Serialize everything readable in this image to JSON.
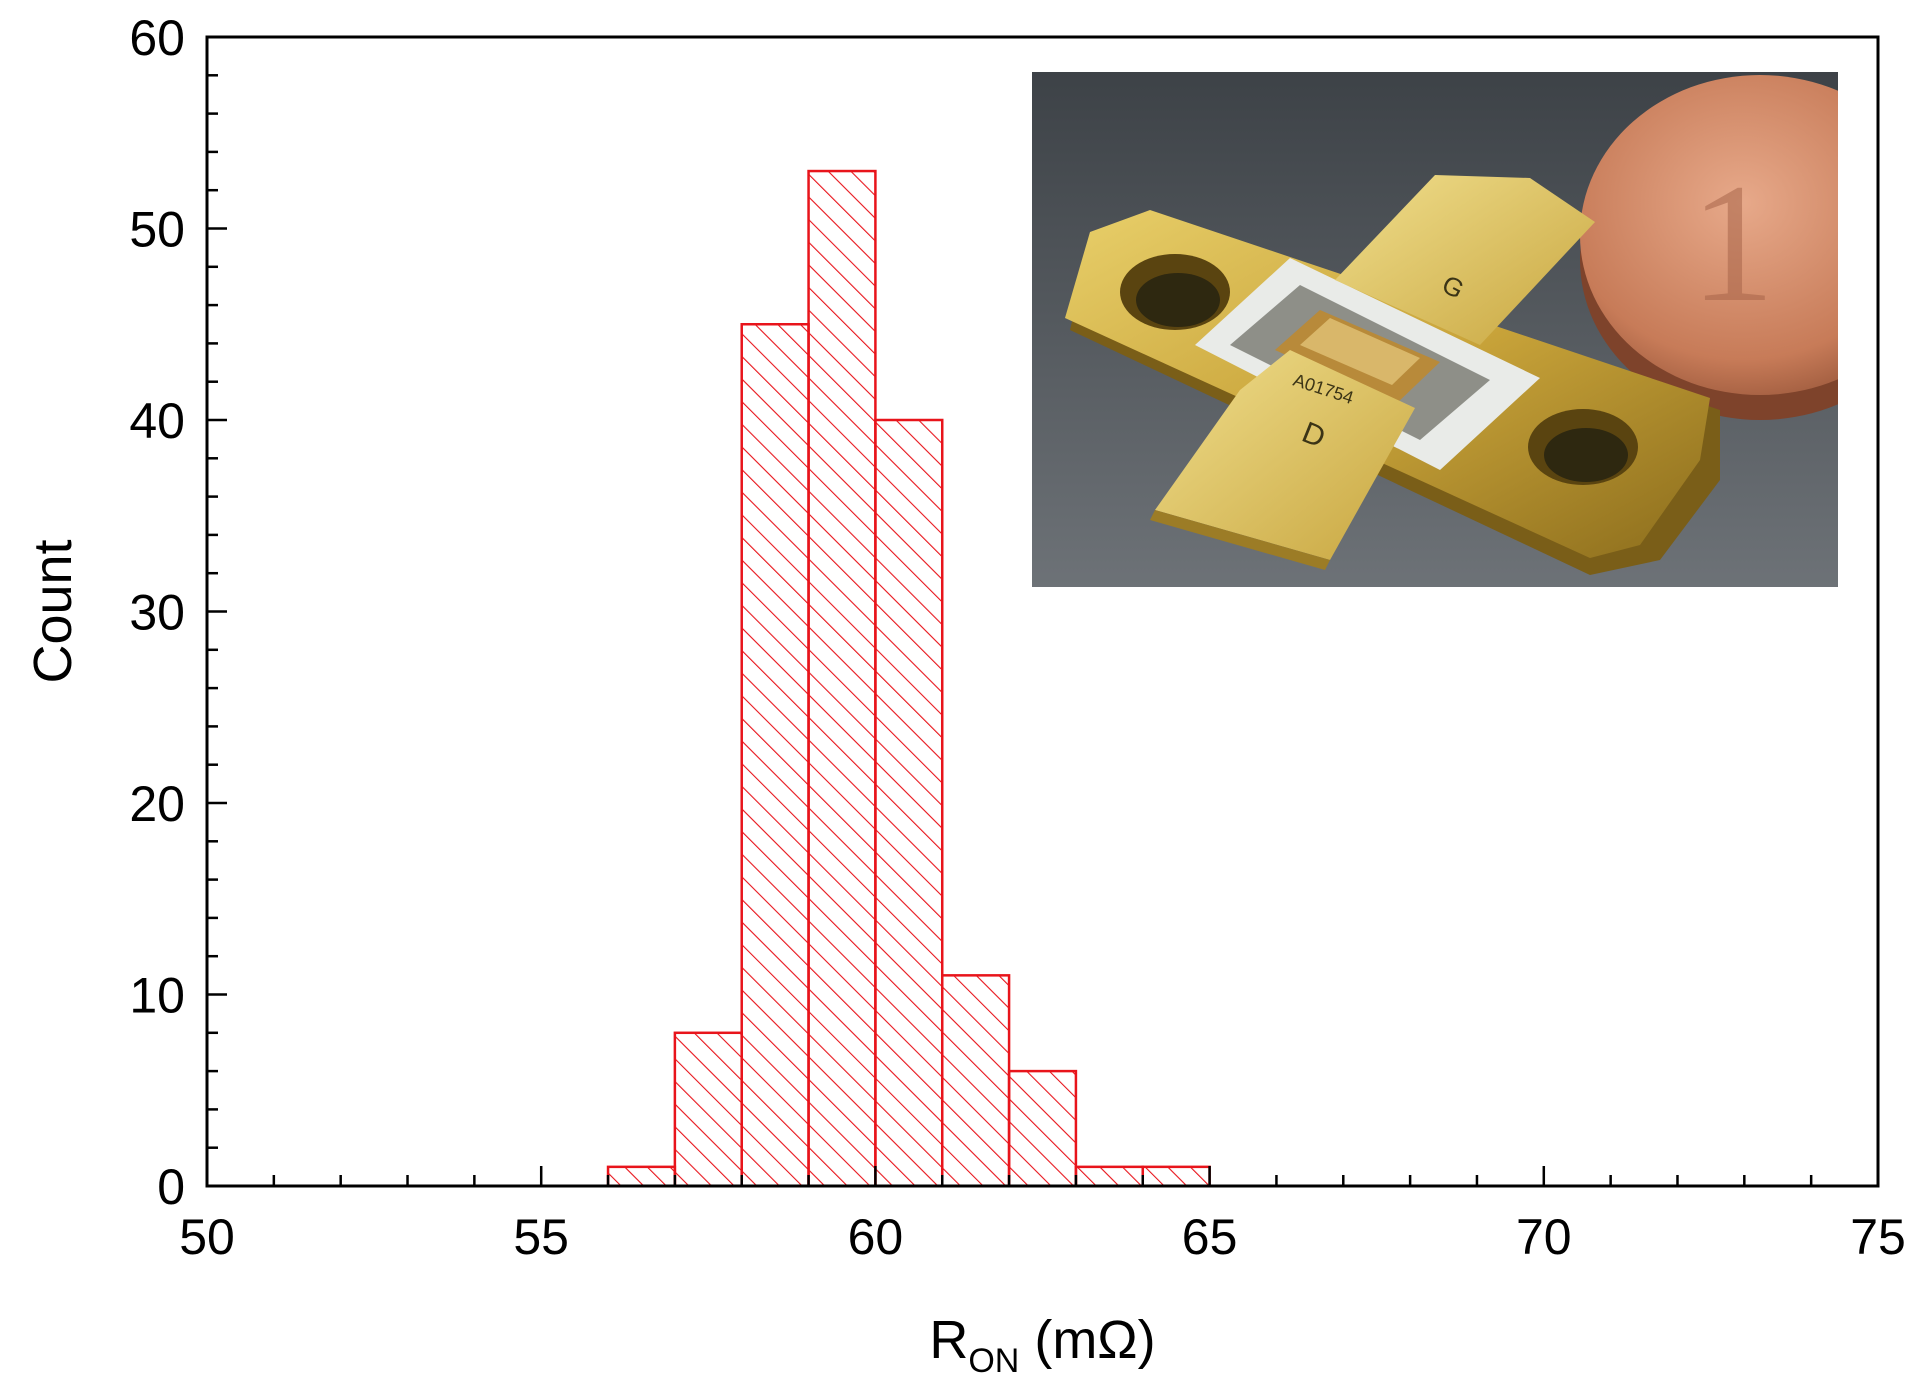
{
  "chart_data": {
    "type": "bar",
    "title": "",
    "xlabel": {
      "main": "R",
      "sub": "ON",
      "unit": " (mΩ)"
    },
    "ylabel": "Count",
    "xlim": [
      50,
      75
    ],
    "ylim": [
      0,
      60
    ],
    "x_ticks": [
      50,
      55,
      60,
      65,
      70,
      75
    ],
    "y_ticks": [
      0,
      10,
      20,
      30,
      40,
      50,
      60
    ],
    "grid": false,
    "legend": "none",
    "bar_color": "#e8141b",
    "bar_fill": "diagonal-hatch",
    "bins": [
      {
        "x0": 56,
        "x1": 57,
        "count": 1
      },
      {
        "x0": 57,
        "x1": 58,
        "count": 8
      },
      {
        "x0": 58,
        "x1": 59,
        "count": 45
      },
      {
        "x0": 59,
        "x1": 60,
        "count": 53
      },
      {
        "x0": 60,
        "x1": 61,
        "count": 40
      },
      {
        "x0": 61,
        "x1": 62,
        "count": 11
      },
      {
        "x0": 62,
        "x1": 63,
        "count": 6
      },
      {
        "x0": 63,
        "x1": 64,
        "count": 1
      },
      {
        "x0": 64,
        "x1": 65,
        "count": 1
      }
    ]
  },
  "inset": {
    "content": "photo of gold flange transistor package next to copper coin",
    "device_marking": "A01754",
    "gate_label": "G",
    "drain_label": "D",
    "coin_label": "1"
  }
}
